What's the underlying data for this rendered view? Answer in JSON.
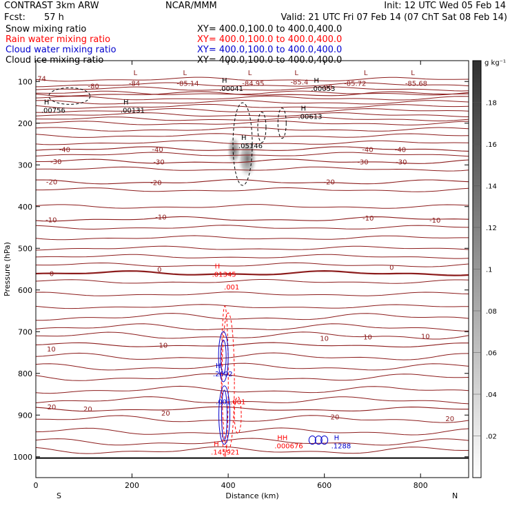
{
  "header": {
    "model_line": "CONTRAST  3km ARW",
    "center": "NCAR/MMM",
    "init": "Init: 12 UTC Wed 05 Feb 14",
    "fcst_label": "Fcst:",
    "fcst_value": "57 h",
    "valid": "Valid: 21 UTC Fri 07 Feb 14 (07 ChT Sat 08 Feb 14)"
  },
  "fields": [
    {
      "name": "Snow mixing ratio",
      "xy": "",
      "color": "#000000"
    },
    {
      "name": "Rain water mixing ratio",
      "xy": "XY= 400.0,100.0 to 400.0,400.0",
      "color": "#ff0000"
    },
    {
      "name": "Cloud water mixing ratio",
      "xy": "XY= 400.0,100.0 to 400.0,400.0",
      "color": "#0000cc"
    },
    {
      "name": "Cloud ice mixing ratio",
      "xy": "XY= 400.0,100.0 to 400.0,400.0",
      "color": "#000000"
    }
  ],
  "snow_xy": "XY= 400.0,100.0 to 400.0,400.0",
  "colors": {
    "temperature": "#8b1a1a",
    "rain": "#ff0000",
    "cloud_water": "#0000cc",
    "ice": "#000000"
  },
  "chart_data": {
    "type": "contour",
    "xlabel": "Distance (km)",
    "ylabel": "Pressure (hPa)",
    "xlim": [
      0,
      900
    ],
    "ylim": [
      1050,
      50
    ],
    "x_ticks": [
      0,
      200,
      400,
      600,
      800
    ],
    "y_ticks": [
      100,
      200,
      300,
      400,
      500,
      600,
      700,
      800,
      900,
      1000
    ],
    "x_end_labels": {
      "left": "S",
      "right": "N"
    },
    "colorbar": {
      "unit": "g kg⁻¹",
      "ticks": [
        ".02",
        ".04",
        ".06",
        ".08",
        ".1",
        ".12",
        ".14",
        ".16",
        ".18"
      ],
      "range": [
        0,
        0.2
      ]
    },
    "temperature_contours": [
      {
        "level": "-80",
        "p": 130
      },
      {
        "level": "-40",
        "p": 262
      },
      {
        "level": "-30",
        "p": 292
      },
      {
        "level": "-20",
        "p": 341
      },
      {
        "level": "-10",
        "p": 430
      },
      {
        "level": "0",
        "p": 560
      },
      {
        "level": "10",
        "p": 732
      },
      {
        "level": "20",
        "p": 886
      }
    ],
    "contour_labels": [
      {
        "text": ".74",
        "x": 10,
        "p": 92,
        "color": "temperature"
      },
      {
        "text": "-80",
        "x": 120,
        "p": 110,
        "color": "temperature"
      },
      {
        "text": "-84",
        "x": 205,
        "p": 104,
        "color": "temperature"
      },
      {
        "text": "-85.14",
        "x": 316,
        "p": 104,
        "color": "temperature"
      },
      {
        "text": "-84.95",
        "x": 452,
        "p": 104,
        "color": "temperature"
      },
      {
        "text": "-85.4",
        "x": 548,
        "p": 100,
        "color": "temperature"
      },
      {
        "text": "-80",
        "x": 605,
        "p": 113,
        "color": "temperature"
      },
      {
        "text": "-85.72",
        "x": 664,
        "p": 104,
        "color": "temperature"
      },
      {
        "text": "-85.68",
        "x": 791,
        "p": 104,
        "color": "temperature"
      },
      {
        "text": "-40",
        "x": 60,
        "p": 262,
        "color": "temperature"
      },
      {
        "text": "-40",
        "x": 253,
        "p": 262,
        "color": "temperature"
      },
      {
        "text": "-40",
        "x": 690,
        "p": 262,
        "color": "temperature"
      },
      {
        "text": "-40",
        "x": 758,
        "p": 262,
        "color": "temperature"
      },
      {
        "text": "-30",
        "x": 42,
        "p": 291,
        "color": "temperature"
      },
      {
        "text": "-30",
        "x": 256,
        "p": 292,
        "color": "temperature"
      },
      {
        "text": "-30",
        "x": 680,
        "p": 292,
        "color": "temperature"
      },
      {
        "text": "-30",
        "x": 760,
        "p": 292,
        "color": "temperature"
      },
      {
        "text": "-20",
        "x": 33,
        "p": 340,
        "color": "temperature"
      },
      {
        "text": "-20",
        "x": 250,
        "p": 342,
        "color": "temperature"
      },
      {
        "text": "-20",
        "x": 610,
        "p": 340,
        "color": "temperature"
      },
      {
        "text": "-10",
        "x": 32,
        "p": 431,
        "color": "temperature"
      },
      {
        "text": "-10",
        "x": 260,
        "p": 424,
        "color": "temperature"
      },
      {
        "text": "-10",
        "x": 691,
        "p": 427,
        "color": "temperature"
      },
      {
        "text": "-10",
        "x": 830,
        "p": 432,
        "color": "temperature"
      },
      {
        "text": "0",
        "x": 33,
        "p": 560,
        "color": "temperature"
      },
      {
        "text": "0",
        "x": 257,
        "p": 550,
        "color": "temperature"
      },
      {
        "text": "0",
        "x": 740,
        "p": 545,
        "color": "temperature"
      },
      {
        "text": "10",
        "x": 32,
        "p": 741,
        "color": "temperature"
      },
      {
        "text": "10",
        "x": 265,
        "p": 732,
        "color": "temperature"
      },
      {
        "text": "10",
        "x": 600,
        "p": 715,
        "color": "temperature"
      },
      {
        "text": "10",
        "x": 690,
        "p": 712,
        "color": "temperature"
      },
      {
        "text": "10",
        "x": 810,
        "p": 710,
        "color": "temperature"
      },
      {
        "text": "20",
        "x": 33,
        "p": 880,
        "color": "temperature"
      },
      {
        "text": "20",
        "x": 108,
        "p": 885,
        "color": "temperature"
      },
      {
        "text": "20",
        "x": 270,
        "p": 895,
        "color": "temperature"
      },
      {
        "text": "20",
        "x": 622,
        "p": 904,
        "color": "temperature"
      },
      {
        "text": "20",
        "x": 861,
        "p": 908,
        "color": "temperature"
      }
    ],
    "extrema_markers": [
      {
        "mark": "L",
        "x": 203,
        "p": 90,
        "value": "",
        "color": "temperature"
      },
      {
        "mark": "L",
        "x": 306,
        "p": 90,
        "value": "",
        "color": "temperature"
      },
      {
        "mark": "H",
        "x": 387,
        "p": 108,
        "value": ".00041",
        "color": "ice"
      },
      {
        "mark": "L",
        "x": 441,
        "p": 90,
        "value": "",
        "color": "temperature"
      },
      {
        "mark": "L",
        "x": 538,
        "p": 90,
        "value": "",
        "color": "temperature"
      },
      {
        "mark": "H",
        "x": 578,
        "p": 108,
        "value": ".00053",
        "color": "ice"
      },
      {
        "mark": "L",
        "x": 682,
        "p": 90,
        "value": "",
        "color": "temperature"
      },
      {
        "mark": "L",
        "x": 780,
        "p": 90,
        "value": "",
        "color": "temperature"
      },
      {
        "mark": "H",
        "x": 17,
        "p": 160,
        "value": ".00756",
        "color": "ice"
      },
      {
        "mark": "H",
        "x": 182,
        "p": 160,
        "value": ".00131",
        "color": "ice"
      },
      {
        "mark": "H",
        "x": 551,
        "p": 175,
        "value": ".00613",
        "color": "ice"
      },
      {
        "mark": "H",
        "x": 427,
        "p": 245,
        "value": ".05146",
        "color": "ice"
      },
      {
        "mark": "H",
        "x": 372,
        "p": 553,
        "value": ".01345",
        "color": "rain"
      },
      {
        "mark": "",
        "x": 397,
        "p": 584,
        "value": ".001",
        "color": "rain"
      },
      {
        "mark": "H",
        "x": 374,
        "p": 792,
        "value": ".2602",
        "color": "cloud_water"
      },
      {
        "mark": "",
        "x": 380,
        "p": 859,
        "value": ".001",
        "color": "cloud_water"
      },
      {
        "mark": "",
        "x": 410,
        "p": 859,
        "value": ".001",
        "color": "rain"
      },
      {
        "mark": "H",
        "x": 370,
        "p": 980,
        "value": ".145921",
        "color": "rain"
      },
      {
        "mark": "HH",
        "x": 502,
        "p": 965,
        "value": ".000676",
        "color": "rain"
      },
      {
        "mark": "H",
        "x": 620,
        "p": 965,
        "value": ".1288",
        "color": "cloud_water"
      }
    ],
    "snow_shading": [
      {
        "x": 440,
        "p": 285,
        "value": 0.11
      },
      {
        "x": 412,
        "p": 265,
        "value": 0.05
      }
    ]
  }
}
